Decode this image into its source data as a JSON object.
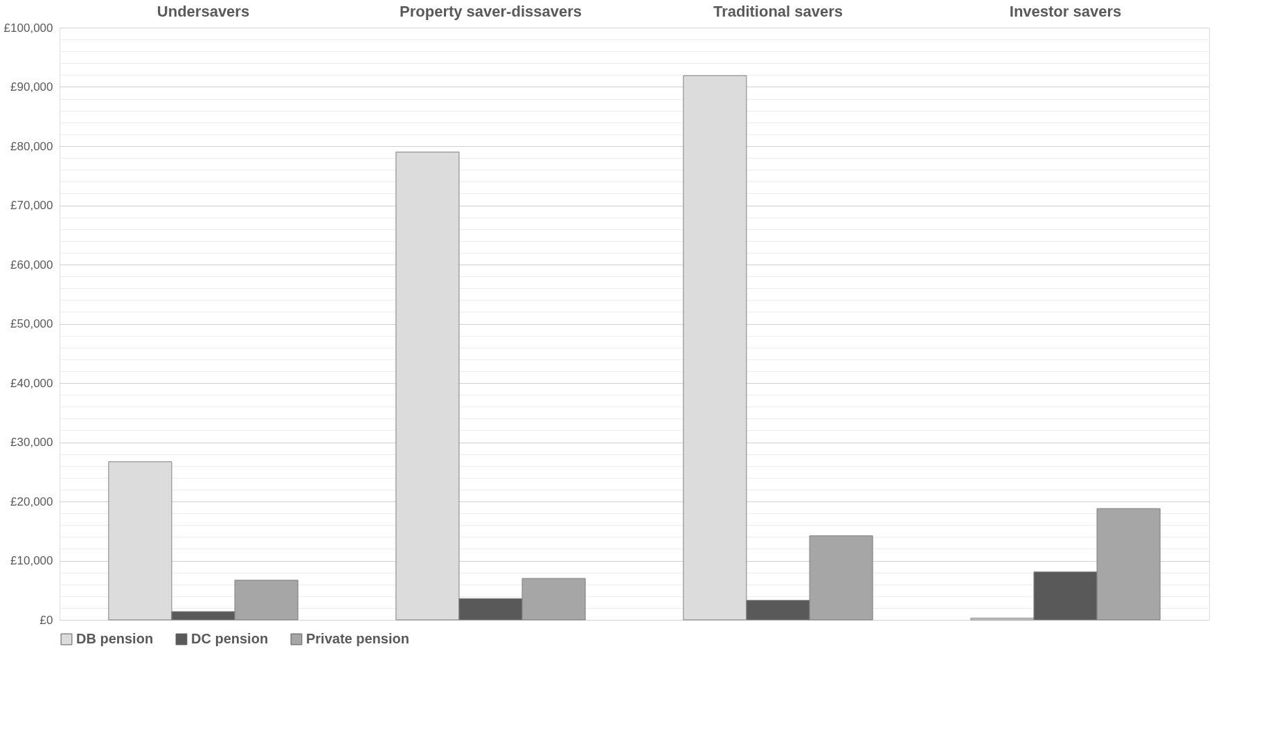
{
  "chart_data": {
    "type": "bar",
    "categories": [
      "Undersavers",
      "Property saver-dissavers",
      "Traditional savers",
      "Investor savers"
    ],
    "series": [
      {
        "name": "DB pension",
        "color": "#dcdcdc",
        "values": [
          26700,
          79000,
          91900,
          300
        ]
      },
      {
        "name": "DC pension",
        "color": "#595959",
        "values": [
          1400,
          3600,
          3300,
          8100
        ]
      },
      {
        "name": "Private pension",
        "color": "#a6a6a6",
        "values": [
          6700,
          7000,
          14200,
          18800
        ]
      }
    ],
    "ylim": [
      0,
      100000
    ],
    "yticks": [
      {
        "value": 0,
        "label": "£0"
      },
      {
        "value": 2000,
        "label": null
      },
      {
        "value": 4000,
        "label": null
      },
      {
        "value": 6000,
        "label": null
      },
      {
        "value": 8000,
        "label": null
      },
      {
        "value": 10000,
        "label": "£10,000"
      },
      {
        "value": 12000,
        "label": null
      },
      {
        "value": 14000,
        "label": null
      },
      {
        "value": 16000,
        "label": null
      },
      {
        "value": 18000,
        "label": null
      },
      {
        "value": 20000,
        "label": "£20,000"
      },
      {
        "value": 22000,
        "label": null
      },
      {
        "value": 24000,
        "label": null
      },
      {
        "value": 26000,
        "label": null
      },
      {
        "value": 28000,
        "label": null
      },
      {
        "value": 30000,
        "label": "£30,000"
      },
      {
        "value": 32000,
        "label": null
      },
      {
        "value": 34000,
        "label": null
      },
      {
        "value": 36000,
        "label": null
      },
      {
        "value": 38000,
        "label": null
      },
      {
        "value": 40000,
        "label": "£40,000"
      },
      {
        "value": 42000,
        "label": null
      },
      {
        "value": 44000,
        "label": null
      },
      {
        "value": 46000,
        "label": null
      },
      {
        "value": 48000,
        "label": null
      },
      {
        "value": 50000,
        "label": "£50,000"
      },
      {
        "value": 52000,
        "label": null
      },
      {
        "value": 54000,
        "label": null
      },
      {
        "value": 56000,
        "label": null
      },
      {
        "value": 58000,
        "label": null
      },
      {
        "value": 60000,
        "label": "£60,000"
      },
      {
        "value": 62000,
        "label": null
      },
      {
        "value": 64000,
        "label": null
      },
      {
        "value": 66000,
        "label": null
      },
      {
        "value": 68000,
        "label": null
      },
      {
        "value": 70000,
        "label": "£70,000"
      },
      {
        "value": 72000,
        "label": null
      },
      {
        "value": 74000,
        "label": null
      },
      {
        "value": 76000,
        "label": null
      },
      {
        "value": 78000,
        "label": null
      },
      {
        "value": 80000,
        "label": "£80,000"
      },
      {
        "value": 82000,
        "label": null
      },
      {
        "value": 84000,
        "label": null
      },
      {
        "value": 86000,
        "label": null
      },
      {
        "value": 88000,
        "label": null
      },
      {
        "value": 90000,
        "label": "£90,000"
      },
      {
        "value": 92000,
        "label": null
      },
      {
        "value": 94000,
        "label": null
      },
      {
        "value": 96000,
        "label": null
      },
      {
        "value": 98000,
        "label": null
      },
      {
        "value": 100000,
        "label": "£100,000"
      }
    ],
    "grid": "y",
    "legend": "bottom"
  }
}
